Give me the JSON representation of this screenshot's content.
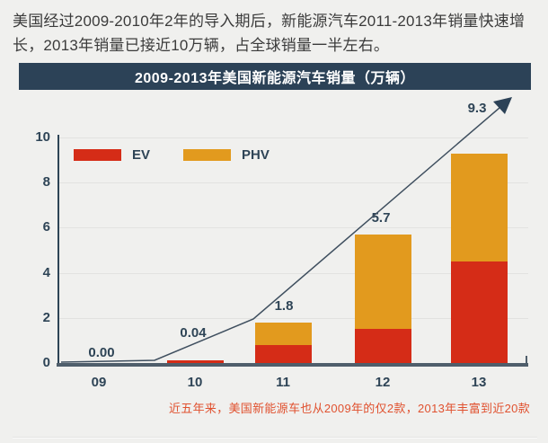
{
  "intro": {
    "text": "美国经过2009-2010年2年的导入期后，新能源汽车2011-2013年销量快速增长，2013年销量已接近10万辆，占全球销量一半左右。"
  },
  "chart": {
    "title": "2009-2013年美国新能源汽车销量（万辆）",
    "footnote": "近五年来，美国新能源车也从2009年的仅2款，2013年丰富到近20款"
  },
  "chart_data": {
    "type": "bar",
    "stacked": true,
    "title": "2009-2013年美国新能源汽车销量（万辆）",
    "unit": "万辆",
    "categories": [
      "09",
      "10",
      "11",
      "12",
      "13"
    ],
    "series": [
      {
        "name": "EV",
        "color": "#d52c17",
        "values": [
          0.0,
          0.04,
          0.8,
          1.5,
          4.5
        ]
      },
      {
        "name": "PHV",
        "color": "#e29a1e",
        "values": [
          0.0,
          0.0,
          1.0,
          4.2,
          4.8
        ]
      }
    ],
    "totals": [
      0.0,
      0.04,
      1.8,
      5.7,
      9.3
    ],
    "total_labels": [
      "0.00",
      "0.04",
      "1.8",
      "5.7",
      "9.3"
    ],
    "y_ticks": [
      0,
      2,
      4,
      6,
      8,
      10
    ],
    "ylim": [
      0,
      10
    ],
    "grid": true,
    "legend_position": "inside-top-left",
    "trend_arrow": true
  },
  "colors": {
    "background": "#f0f0ee",
    "title_bar": "#2c4257",
    "axis_text": "#2e4456",
    "baseline": "#4f5e6b",
    "trend_line": "#3f4f5f",
    "footnote_text": "#e0512f",
    "ev": "#d52c17",
    "phv": "#e29a1e"
  }
}
